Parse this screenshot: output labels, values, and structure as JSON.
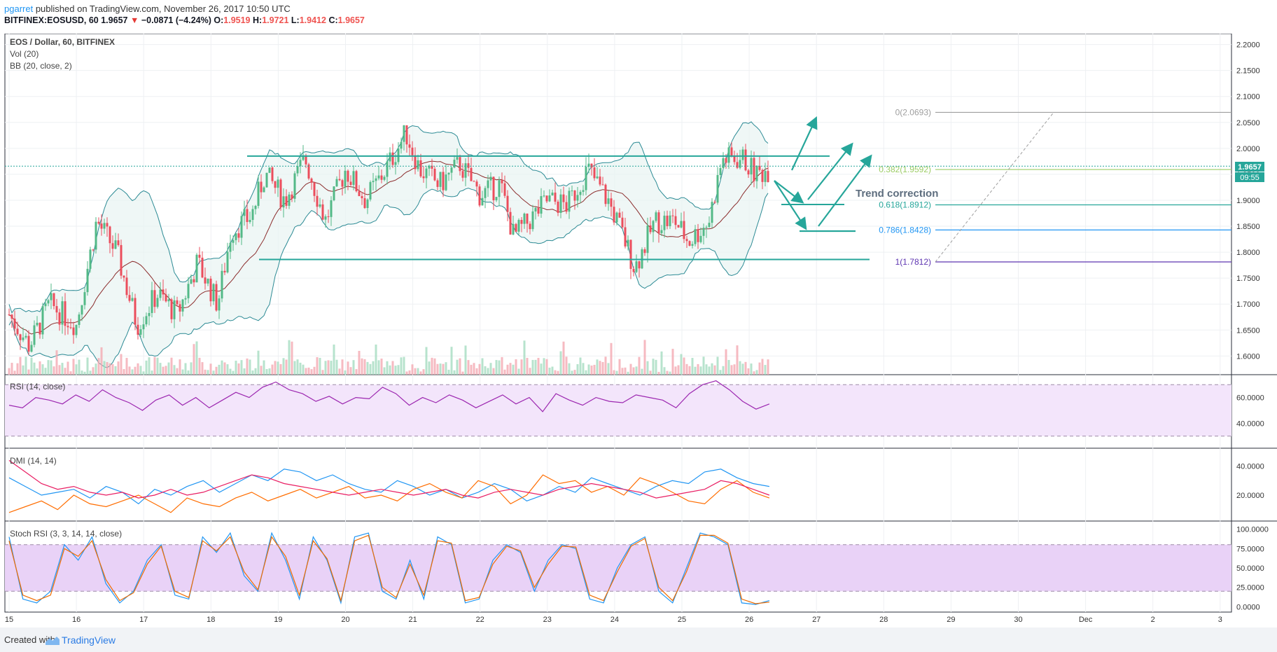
{
  "header": {
    "user": "pgarret",
    "published": "published on TradingView.com, November 26, 2017 10:50 UTC",
    "symbol": "BITFINEX:EOSUSD, 60",
    "last": "1.9657",
    "change_arrow": "▼",
    "change": "−0.0871 (−4.24%)",
    "ohlc_labels": {
      "o": "O:",
      "h": "H:",
      "l": "L:",
      "c": "C:"
    },
    "ohlc_values": {
      "o": "1.9519",
      "h": "1.9721",
      "l": "1.9412",
      "c": "1.9657"
    }
  },
  "legend": {
    "title": "EOS / Dollar, 60, BITFINEX",
    "vol": "Vol (20)",
    "bb": "BB (20, close, 2)",
    "rsi": "RSI (14, close)",
    "dmi": "DMI (14, 14)",
    "stoch": "Stoch RSI (3, 3, 14, 14, close)"
  },
  "price_badge": {
    "value": "1.9657",
    "countdown": "09:55"
  },
  "annotations": {
    "trend_correction": "Trend correction",
    "fib": [
      {
        "label": "0(2.0693)",
        "level": 2.0693,
        "color": "#9e9e9e"
      },
      {
        "label": "0.382(1.9592)",
        "level": 1.9592,
        "color": "#9ccc65"
      },
      {
        "label": "0.618(1.8912)",
        "level": 1.8912,
        "color": "#26a69a"
      },
      {
        "label": "0.786(1.8428)",
        "level": 1.8428,
        "color": "#2196f3"
      },
      {
        "label": "1(1.7812)",
        "level": 1.7812,
        "color": "#5e35b1"
      }
    ],
    "resistance": 1.985,
    "support": 1.786
  },
  "chart_data": {
    "type": "candlestick",
    "x_ticks": [
      "15",
      "16",
      "17",
      "18",
      "19",
      "20",
      "21",
      "22",
      "23",
      "24",
      "25",
      "26",
      "27",
      "28",
      "29",
      "30",
      "Dec",
      "2",
      "3"
    ],
    "price_axis": {
      "ticks": [
        "2.2000",
        "2.1500",
        "2.1000",
        "2.0500",
        "2.0000",
        "1.9500",
        "1.9000",
        "1.8500",
        "1.8000",
        "1.7500",
        "1.7000",
        "1.6500",
        "1.6000"
      ],
      "ylim": [
        1.564,
        2.221
      ],
      "last_price": 1.9657
    },
    "price_path": [
      [
        0,
        1.68
      ],
      [
        0.3,
        1.62
      ],
      [
        0.6,
        1.7
      ],
      [
        1.0,
        1.66
      ],
      [
        1.3,
        1.86
      ],
      [
        1.6,
        1.8
      ],
      [
        1.9,
        1.66
      ],
      [
        2.2,
        1.72
      ],
      [
        2.5,
        1.68
      ],
      [
        2.8,
        1.78
      ],
      [
        3.1,
        1.7
      ],
      [
        3.3,
        1.84
      ],
      [
        3.6,
        1.87
      ],
      [
        3.8,
        1.95
      ],
      [
        4.1,
        1.9
      ],
      [
        4.4,
        1.98
      ],
      [
        4.7,
        1.86
      ],
      [
        5.0,
        1.96
      ],
      [
        5.3,
        1.9
      ],
      [
        5.6,
        1.96
      ],
      [
        5.9,
        2.03
      ],
      [
        6.1,
        1.96
      ],
      [
        6.4,
        1.93
      ],
      [
        6.7,
        1.97
      ],
      [
        7.0,
        1.91
      ],
      [
        7.3,
        1.93
      ],
      [
        7.5,
        1.83
      ],
      [
        7.8,
        1.87
      ],
      [
        8.0,
        1.9
      ],
      [
        8.3,
        1.89
      ],
      [
        8.6,
        1.96
      ],
      [
        8.9,
        1.9
      ],
      [
        9.1,
        1.84
      ],
      [
        9.3,
        1.77
      ],
      [
        9.6,
        1.86
      ],
      [
        9.9,
        1.86
      ],
      [
        10.1,
        1.82
      ],
      [
        10.4,
        1.86
      ],
      [
        10.6,
        1.98
      ],
      [
        10.9,
        1.98
      ],
      [
        11.1,
        1.95
      ],
      [
        11.3,
        1.96
      ]
    ],
    "volume_axis": {
      "max": 1
    },
    "rsi": {
      "ticks": [
        "60.0000",
        "40.0000"
      ],
      "ylim": [
        25,
        75
      ],
      "bands": [
        70,
        30
      ],
      "values": [
        54,
        52,
        60,
        58,
        55,
        62,
        57,
        66,
        60,
        56,
        50,
        58,
        62,
        54,
        60,
        52,
        58,
        64,
        60,
        68,
        72,
        66,
        63,
        57,
        61,
        55,
        60,
        59,
        68,
        63,
        54,
        60,
        56,
        62,
        58,
        52,
        57,
        62,
        55,
        60,
        49,
        63,
        58,
        54,
        60,
        57,
        56,
        62,
        60,
        58,
        52,
        63,
        70,
        73,
        66,
        57,
        51,
        55
      ]
    },
    "dmi": {
      "ticks": [
        "40.0000",
        "20.0000"
      ],
      "ylim": [
        5,
        50
      ],
      "series": [
        {
          "color": "#2196f3",
          "values": [
            32,
            26,
            20,
            22,
            24,
            18,
            26,
            22,
            14,
            24,
            20,
            26,
            30,
            22,
            28,
            34,
            30,
            38,
            36,
            30,
            34,
            28,
            24,
            22,
            30,
            26,
            20,
            24,
            18,
            22,
            28,
            24,
            16,
            20,
            26,
            22,
            32,
            28,
            24,
            20,
            26,
            30,
            28,
            36,
            38,
            32,
            28,
            26
          ]
        },
        {
          "color": "#ff6d00",
          "values": [
            8,
            12,
            16,
            10,
            20,
            14,
            12,
            16,
            20,
            14,
            8,
            18,
            14,
            12,
            18,
            22,
            16,
            20,
            24,
            18,
            22,
            26,
            18,
            20,
            16,
            24,
            28,
            22,
            18,
            30,
            26,
            14,
            20,
            34,
            28,
            30,
            22,
            26,
            20,
            32,
            28,
            22,
            16,
            14,
            24,
            30,
            22,
            18
          ]
        },
        {
          "color": "#e91e63",
          "values": [
            44,
            36,
            28,
            24,
            26,
            22,
            20,
            22,
            18,
            20,
            24,
            20,
            22,
            26,
            30,
            34,
            32,
            28,
            26,
            24,
            22,
            20,
            22,
            24,
            22,
            20,
            22,
            24,
            20,
            18,
            22,
            24,
            22,
            20,
            24,
            26,
            28,
            26,
            24,
            22,
            18,
            20,
            22,
            24,
            30,
            28,
            24,
            20
          ]
        }
      ]
    },
    "stoch_rsi": {
      "ticks": [
        "100.0000",
        "75.0000",
        "50.0000",
        "25.0000",
        "0.0000"
      ],
      "ylim": [
        -5,
        105
      ],
      "bands": [
        80,
        20
      ],
      "series": [
        {
          "color": "#2196f3",
          "values": [
            90,
            10,
            5,
            20,
            80,
            60,
            90,
            30,
            5,
            20,
            60,
            80,
            15,
            10,
            90,
            70,
            95,
            40,
            20,
            95,
            60,
            10,
            90,
            60,
            5,
            90,
            95,
            20,
            10,
            60,
            10,
            90,
            80,
            5,
            10,
            60,
            80,
            70,
            20,
            60,
            80,
            75,
            10,
            5,
            50,
            80,
            90,
            20,
            5,
            50,
            95,
            90,
            80,
            5,
            3,
            8
          ]
        },
        {
          "color": "#ef6c00",
          "values": [
            85,
            15,
            8,
            15,
            75,
            65,
            85,
            35,
            8,
            18,
            55,
            78,
            20,
            12,
            85,
            72,
            90,
            45,
            22,
            90,
            65,
            15,
            85,
            62,
            8,
            85,
            92,
            25,
            12,
            55,
            15,
            85,
            82,
            8,
            12,
            55,
            78,
            72,
            25,
            55,
            78,
            77,
            15,
            8,
            45,
            78,
            88,
            25,
            8,
            45,
            92,
            92,
            82,
            10,
            4,
            6
          ]
        }
      ]
    }
  }
}
